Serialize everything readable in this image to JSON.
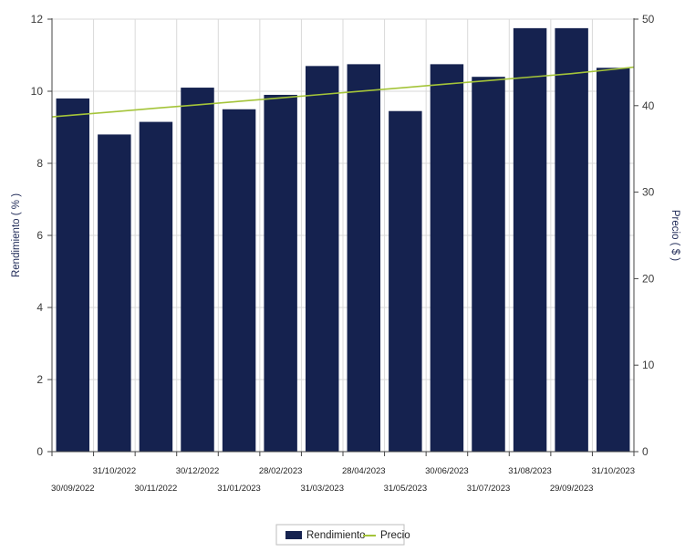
{
  "chart_data": {
    "type": "bar",
    "categories": [
      "30/09/2022",
      "31/10/2022",
      "30/11/2022",
      "30/12/2022",
      "31/01/2023",
      "28/02/2023",
      "31/03/2023",
      "28/04/2023",
      "31/05/2023",
      "30/06/2023",
      "31/07/2023",
      "31/08/2023",
      "29/09/2023",
      "31/10/2023"
    ],
    "series": [
      {
        "name": "Rendimiento",
        "axis": "left",
        "kind": "bar",
        "color": "#15224f",
        "values": [
          9.8,
          8.8,
          9.15,
          10.1,
          9.5,
          9.9,
          10.7,
          10.75,
          9.45,
          10.75,
          10.4,
          11.75,
          11.75,
          10.65
        ]
      },
      {
        "name": "Precio",
        "axis": "right",
        "kind": "line",
        "color": "#a4c439",
        "values": [
          38.9,
          39.3,
          39.7,
          40.1,
          40.5,
          40.9,
          41.3,
          41.7,
          42.1,
          42.5,
          42.9,
          43.3,
          43.7,
          44.2
        ]
      }
    ],
    "ylabel": "Rendimiento  ( % )",
    "ylabel_right": "Precio  ( $ )",
    "ylim": [
      0,
      12
    ],
    "ylim_right": [
      0,
      50
    ],
    "yticks": [
      "0",
      "2",
      "4",
      "6",
      "8",
      "10",
      "12"
    ],
    "yticks_right": [
      "0",
      "10",
      "20",
      "30",
      "40",
      "50"
    ],
    "grid": true,
    "legend_position": "bottom-center",
    "colors": {
      "bar": "#15224f",
      "line": "#a4c439",
      "grid": "#d9d9d9",
      "axis": "#444444"
    }
  }
}
